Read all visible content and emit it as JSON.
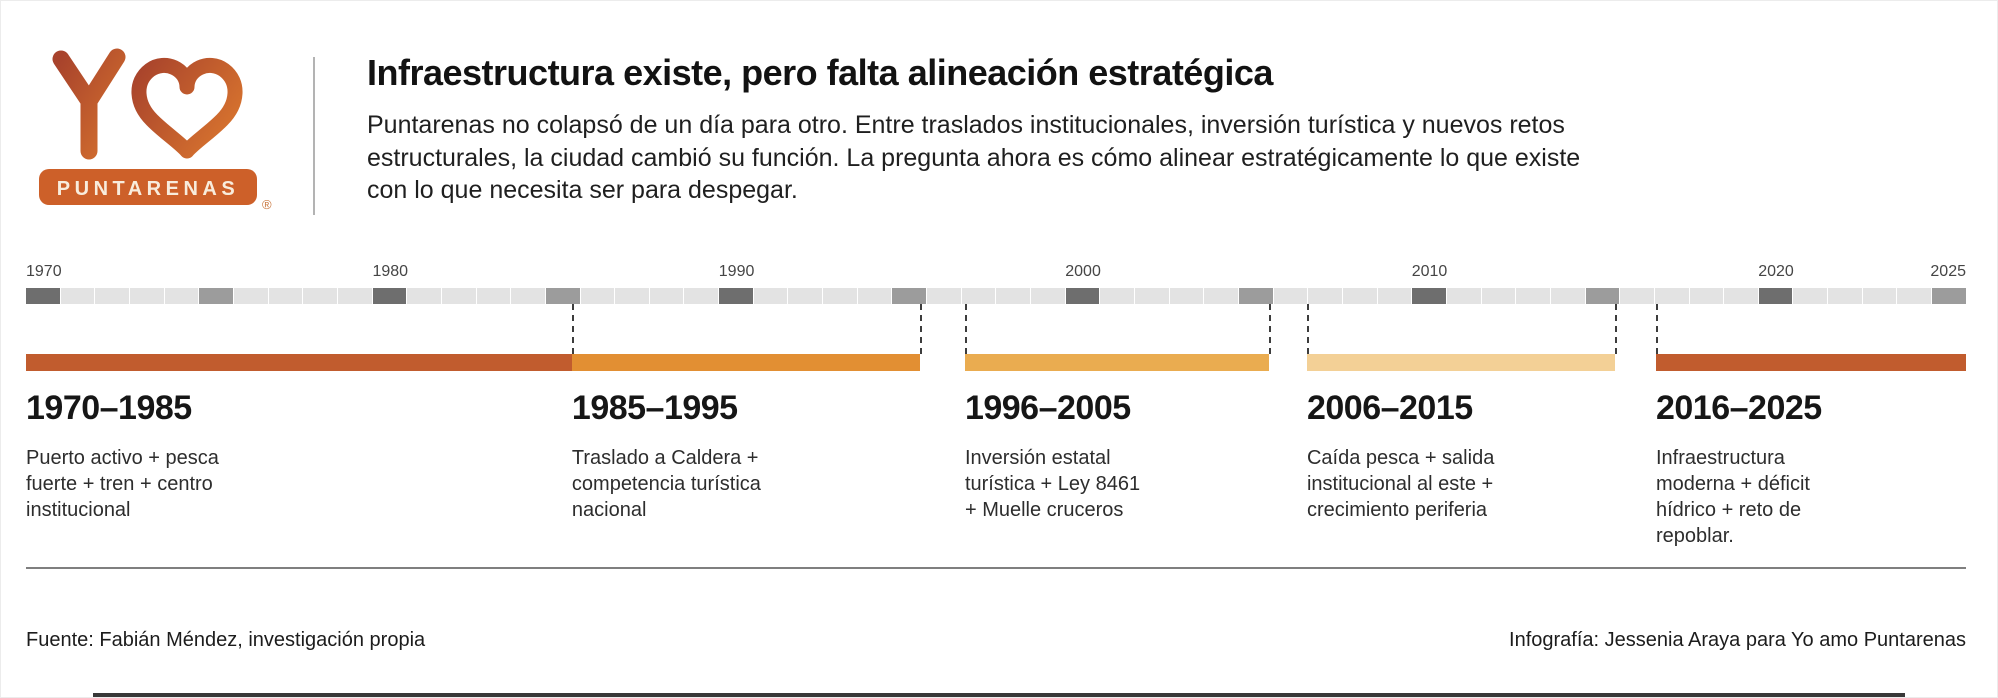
{
  "logo": {
    "badge_text": "PUNTARENAS",
    "registered": "®",
    "orange_dark": "#a8432c",
    "orange_main": "#cd6029",
    "orange_light": "#d4702e"
  },
  "header": {
    "title": "Infraestructura existe, pero falta alineación estratégica",
    "subtitle_lines": [
      "Puntarenas no colapsó de un día para otro. Entre traslados institucionales, inversión turística y nuevos retos",
      "estructurales, la ciudad cambió su función. La pregunta ahora es cómo alinear estratégicamente lo que existe",
      "con lo que necesita ser para despegar."
    ]
  },
  "timeline": {
    "start_year": 1970,
    "end_year": 2025,
    "tick_colors": {
      "decade": "#6e6e6e",
      "half": "#9c9c9c",
      "base": "#e3e3e3"
    },
    "year_labels": [
      {
        "year": "1970",
        "left_pct": 0
      },
      {
        "year": "1980",
        "left_pct": 17.86
      },
      {
        "year": "1990",
        "left_pct": 35.71
      },
      {
        "year": "2000",
        "left_pct": 53.57
      },
      {
        "year": "2010",
        "left_pct": 71.43
      },
      {
        "year": "2020",
        "left_pct": 89.29
      },
      {
        "year": "2025",
        "align": "right"
      }
    ],
    "connector_positions_pct": [
      28.14,
      46.08,
      48.4,
      64.07,
      66.03,
      81.91,
      84.02
    ],
    "eras": [
      {
        "range": "1970–1985",
        "color": "#c15c2e",
        "left_pct": 0,
        "width_pct": 28.14,
        "desc_lines": [
          "Puerto activo + pesca",
          "fuerte + tren + centro",
          "institucional"
        ]
      },
      {
        "range": "1985–1995",
        "color": "#e28f33",
        "left_pct": 28.14,
        "width_pct": 17.94,
        "desc_lines": [
          "Traslado a Caldera +",
          "competencia turística",
          "nacional"
        ]
      },
      {
        "range": "1996–2005",
        "color": "#eaac50",
        "left_pct": 48.4,
        "width_pct": 15.67,
        "desc_lines": [
          "Inversión estatal",
          "turística + Ley 8461",
          "+ Muelle cruceros"
        ]
      },
      {
        "range": "2006–2015",
        "color": "#f3d096",
        "left_pct": 66.03,
        "width_pct": 15.88,
        "desc_lines": [
          "Caída pesca + salida",
          "institucional al este +",
          "crecimiento periferia"
        ]
      },
      {
        "range": "2016–2025",
        "color": "#c15c2e",
        "left_pct": 84.02,
        "width_pct": 15.98,
        "desc_lines": [
          "Infraestructura",
          "moderna + déficit",
          "hídrico + reto de",
          "repoblar."
        ]
      }
    ]
  },
  "footer": {
    "source": "Fuente: Fabián Méndez, investigación propia",
    "credit": "Infografía: Jessenia Araya para Yo amo Puntarenas"
  }
}
